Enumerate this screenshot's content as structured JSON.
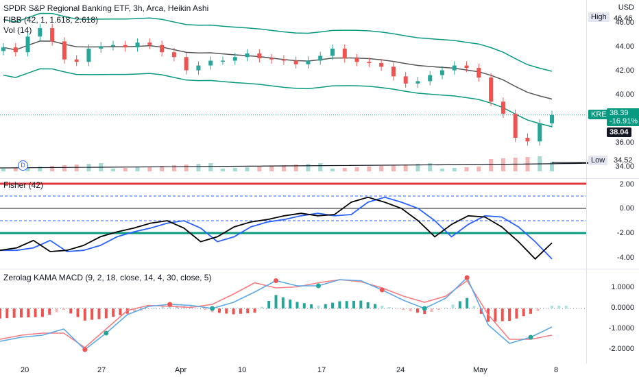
{
  "legend": {
    "title": "SPDR S&P Regional Banking ETF, 3h, Arca, Heikin Ashi",
    "ind1": "FIBB (42, 1, 1.618, 2.618)",
    "ind2": "Vol (14)",
    "fisher": "Fisher (42)",
    "macd": "Zerolag KAMA MACD (9, 2, 18, close, 14, 4, 30, close, 5)",
    "dividend_marker": "D"
  },
  "axis": {
    "currency": "USD",
    "price_ticks": [
      "46.00",
      "44.00",
      "42.00",
      "40.00",
      "36.00",
      "34.00"
    ],
    "fisher_ticks": [
      "2.00",
      "0.00",
      "-2.00",
      "-4.00"
    ],
    "macd_ticks": [
      "1.0000",
      "0.0000",
      "-1.0000",
      "-2.0000"
    ],
    "x_ticks": [
      "20",
      "27",
      "Apr",
      "10",
      "17",
      "24",
      "May",
      "8"
    ]
  },
  "tags": {
    "high_label": "High",
    "high_value": "46.46",
    "low_label": "Low",
    "low_value": "34.52",
    "symbol": "KRE",
    "last_price": "38.39",
    "change": "-16.91%",
    "open_price": "38.04"
  },
  "colors": {
    "up": "#26a69a",
    "down": "#ef5350",
    "fisher": "#000000",
    "trigger": "#2962ff",
    "macd": "#5aa9e6",
    "signal": "#f77c80",
    "level_red": "#e0373d",
    "level_green": "#089981"
  },
  "chart_data": [
    {
      "type": "candlestick",
      "title": "SPDR S&P Regional Banking ETF, 3h, Arca, Heikin Ashi",
      "ylabel": "USD",
      "ylim": [
        33.5,
        47
      ],
      "x_ticks": [
        "20",
        "27",
        "Apr",
        "10",
        "17",
        "24",
        "May",
        "8"
      ],
      "high": 46.46,
      "low": 34.52,
      "last": 38.39,
      "change_pct": -16.91,
      "close_series": [
        44,
        43.6,
        44.9,
        45.6,
        44.5,
        43,
        42.8,
        43.9,
        44.1,
        44.2,
        44,
        44.4,
        44.2,
        43.6,
        43.2,
        42.1,
        42.5,
        42.9,
        42.9,
        43.2,
        43.5,
        43.1,
        43,
        42.9,
        42.6,
        42.9,
        43.3,
        43.9,
        43.1,
        42.8,
        42.7,
        42.4,
        41.6,
        41,
        41.2,
        41.7,
        42.1,
        42.5,
        42.3,
        41.5,
        39.5,
        38.5,
        36.5,
        36.2,
        37.7,
        38.39
      ]
    },
    {
      "type": "line",
      "title": "Fisher (42)",
      "ylim": [
        -4.5,
        2.5
      ],
      "levels": [
        2,
        1,
        0,
        -1,
        -2
      ],
      "series": [
        {
          "values": [
            -3.4,
            -3.2,
            -2.6,
            -3.5,
            -3.4,
            -3.0,
            -2.3,
            -1.9,
            -1.6,
            -1.2,
            -1.0,
            -1.6,
            -2.7,
            -2.3,
            -1.5,
            -1.1,
            -0.9,
            -0.6,
            -0.4,
            -0.6,
            -0.5,
            0.5,
            0.9,
            0.5,
            0.0,
            -1.0,
            -2.3,
            -1.3,
            -0.6,
            -0.7,
            -1.5,
            -2.7,
            -4.1,
            -2.8
          ]
        }
      ]
    },
    {
      "type": "line",
      "title": "Zerolag KAMA MACD (9, 2, 18, close, 14, 4, 30, close, 5)",
      "ylim": [
        -2.3,
        1.6
      ],
      "series": [
        {
          "values": [
            -1.6,
            -1.4,
            -1.3,
            -1.0,
            -2.0,
            -1.2,
            -0.3,
            0.1,
            0.2,
            0.15,
            0.0,
            0.3,
            0.8,
            1.35,
            1.1,
            1.1,
            1.4,
            1.35,
            0.9,
            0.4,
            0.0,
            0.5,
            1.5,
            -0.8,
            -1.7,
            -1.4,
            -0.9
          ]
        },
        {
          "values": [
            -1.5,
            -1.3,
            -1.2,
            -1.2,
            -1.9,
            -1.0,
            -0.1,
            0.15,
            0.1,
            0.05,
            0.2,
            0.7,
            1.25,
            1.0,
            1.05,
            1.25,
            1.4,
            1.3,
            1.0,
            0.6,
            0.3,
            0.6,
            1.35,
            -0.3,
            -1.5,
            -1.5,
            -1.3
          ]
        }
      ]
    }
  ]
}
